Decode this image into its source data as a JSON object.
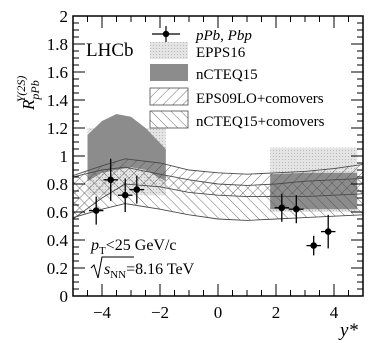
{
  "chart_data": {
    "type": "scatter",
    "experiment_label": "LHCb",
    "ylabel": {
      "base": "R",
      "sup": "Υ(2S)",
      "sub": "pPb"
    },
    "xlabel": "y*",
    "xlim": [
      -5,
      5
    ],
    "ylim": [
      0,
      2
    ],
    "xticks": [
      -4,
      -2,
      0,
      2,
      4
    ],
    "yticks": [
      0,
      0.2,
      0.4,
      0.6,
      0.8,
      1,
      1.2,
      1.4,
      1.6,
      1.8,
      2
    ],
    "annotations": [
      {
        "main": "p",
        "sub": "T",
        "rest": "<25 GeV/c"
      },
      {
        "radicand": "s",
        "radicand_sub": "NN",
        "rest": "=8.16 TeV"
      }
    ],
    "legend": [
      {
        "label": "pPb, Pbp",
        "style": "points"
      },
      {
        "label": "EPPS16",
        "style": "light-dotted"
      },
      {
        "label": "nCTEQ15",
        "style": "dark-gray"
      },
      {
        "label": "EPS09LO+comovers",
        "style": "hatch-backslash"
      },
      {
        "label": "nCTEQ15+comovers",
        "style": "hatch-slash"
      }
    ],
    "series": [
      {
        "name": "pPb, Pbp",
        "points": [
          {
            "x": -4.2,
            "y": 0.61,
            "yerr": 0.1
          },
          {
            "x": -3.7,
            "y": 0.83,
            "yerr": 0.15
          },
          {
            "x": -3.2,
            "y": 0.72,
            "yerr": 0.12
          },
          {
            "x": -2.8,
            "y": 0.76,
            "yerr": 0.1
          },
          {
            "x": 2.2,
            "y": 0.63,
            "yerr": 0.1
          },
          {
            "x": 2.7,
            "y": 0.62,
            "yerr": 0.1
          },
          {
            "x": 3.3,
            "y": 0.36,
            "yerr": 0.07
          },
          {
            "x": 3.8,
            "y": 0.46,
            "yerr": 0.12
          }
        ]
      }
    ],
    "bands": [
      {
        "name": "EPPS16",
        "x": [
          -4.5,
          -1.8,
          1.8,
          4.8
        ],
        "upper": [
          1.2,
          1.2,
          1.06,
          1.06
        ],
        "lower": [
          0.72,
          0.72,
          0.6,
          0.6
        ],
        "segments": [
          [
            -4.5,
            -1.8
          ],
          [
            1.8,
            4.8
          ]
        ]
      },
      {
        "name": "nCTEQ15",
        "x": [
          -4.5,
          -4.0,
          -3.5,
          -3.0,
          -2.5,
          -1.8,
          1.8,
          3.0,
          4.8
        ],
        "upper": [
          1.15,
          1.25,
          1.3,
          1.28,
          1.2,
          1.05,
          0.87,
          0.88,
          0.88
        ],
        "lower": [
          0.82,
          0.88,
          0.9,
          0.92,
          0.9,
          0.82,
          0.62,
          0.62,
          0.62
        ],
        "segments": [
          [
            -4.5,
            -1.8
          ],
          [
            1.8,
            4.8
          ]
        ]
      },
      {
        "name": "EPS09LO+comovers",
        "x": [
          -5,
          -4,
          -3.2,
          -2,
          -1,
          0,
          1,
          2,
          3,
          4,
          5
        ],
        "upper": [
          0.86,
          0.93,
          0.98,
          0.95,
          0.9,
          0.88,
          0.87,
          0.88,
          0.89,
          0.91,
          0.94
        ],
        "lower": [
          0.55,
          0.7,
          0.8,
          0.78,
          0.74,
          0.72,
          0.71,
          0.71,
          0.71,
          0.72,
          0.73
        ]
      },
      {
        "name": "nCTEQ15+comovers",
        "x": [
          -5,
          -4,
          -3.2,
          -2,
          -1,
          0,
          1,
          2,
          3,
          4,
          5
        ],
        "upper": [
          0.85,
          0.9,
          0.92,
          0.87,
          0.83,
          0.8,
          0.79,
          0.8,
          0.82,
          0.83,
          0.84
        ],
        "lower": [
          0.56,
          0.62,
          0.66,
          0.62,
          0.58,
          0.55,
          0.54,
          0.55,
          0.56,
          0.57,
          0.58
        ]
      }
    ],
    "colors": {
      "light_band": "#e2e2e2",
      "dark_band": "#8c8c8c",
      "points": "#000000",
      "hatch": "#4a4a4a"
    }
  }
}
